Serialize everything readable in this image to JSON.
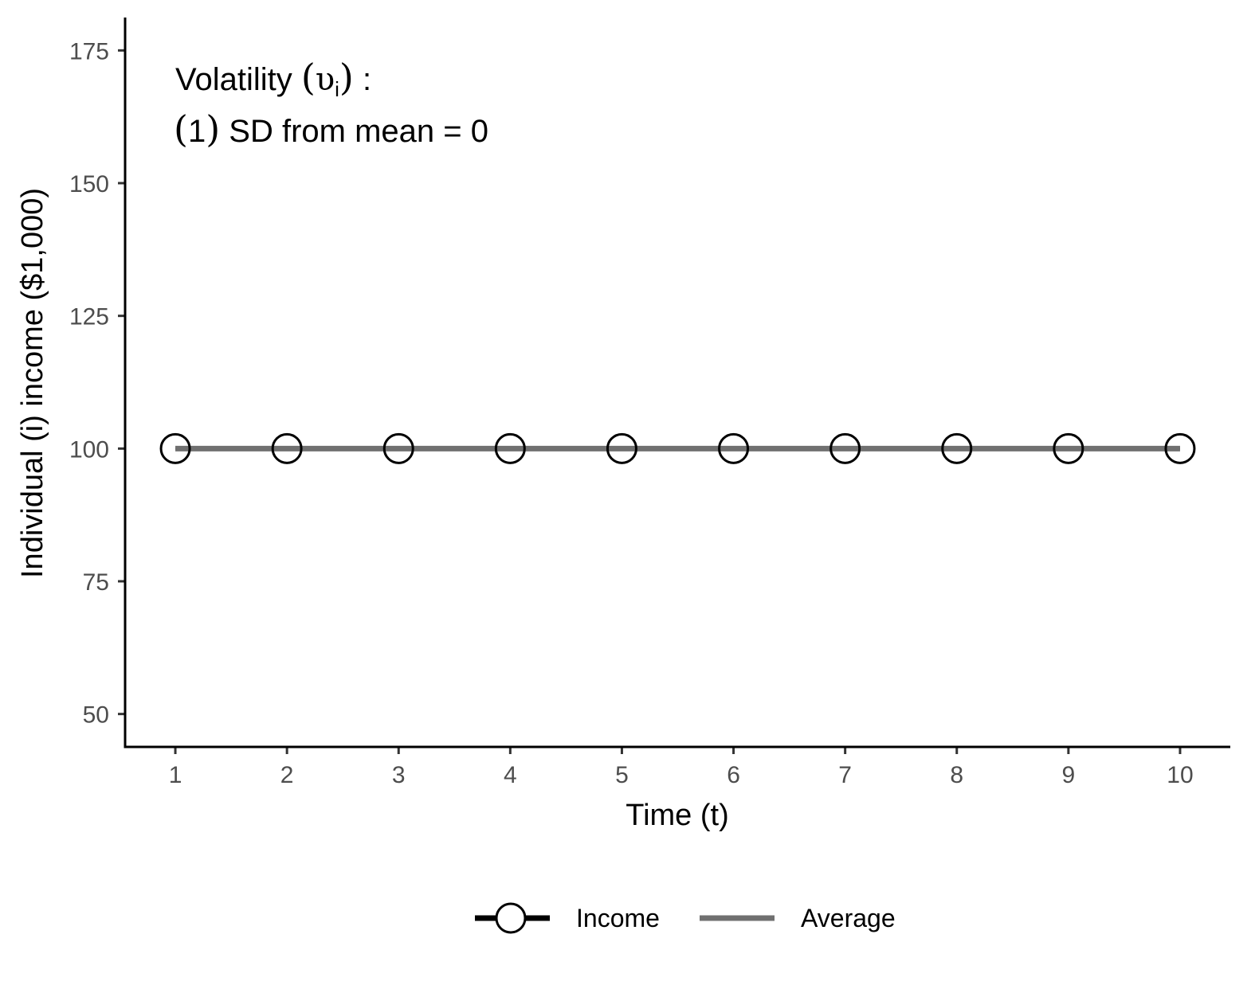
{
  "chart_data": {
    "type": "line",
    "title": "",
    "xlabel": "Time (t)",
    "ylabel": "Individual (i) income ($1,000)",
    "x": [
      1,
      2,
      3,
      4,
      5,
      6,
      7,
      8,
      9,
      10
    ],
    "xticks": [
      "1",
      "2",
      "3",
      "4",
      "5",
      "6",
      "7",
      "8",
      "9",
      "10"
    ],
    "yticks": [
      50,
      75,
      100,
      125,
      150,
      175
    ],
    "xlim": [
      0.55,
      10.45
    ],
    "ylim": [
      43.8,
      181.2
    ],
    "grid": false,
    "legend_position": "bottom",
    "series": [
      {
        "name": "Income",
        "values": [
          100,
          100,
          100,
          100,
          100,
          100,
          100,
          100,
          100,
          100
        ],
        "color": "#000000",
        "marker": "open-circle"
      },
      {
        "name": "Average",
        "values": [
          100,
          100,
          100,
          100,
          100,
          100,
          100,
          100,
          100,
          100
        ],
        "color": "#707070",
        "marker": "none"
      }
    ],
    "annotation": {
      "line1_prefix": "Volatility ",
      "line1_symbol": "υ",
      "line1_subscript": "i",
      "line1_suffix": " :",
      "line2_number": "1",
      "line2_text": " SD from mean = 0"
    }
  }
}
